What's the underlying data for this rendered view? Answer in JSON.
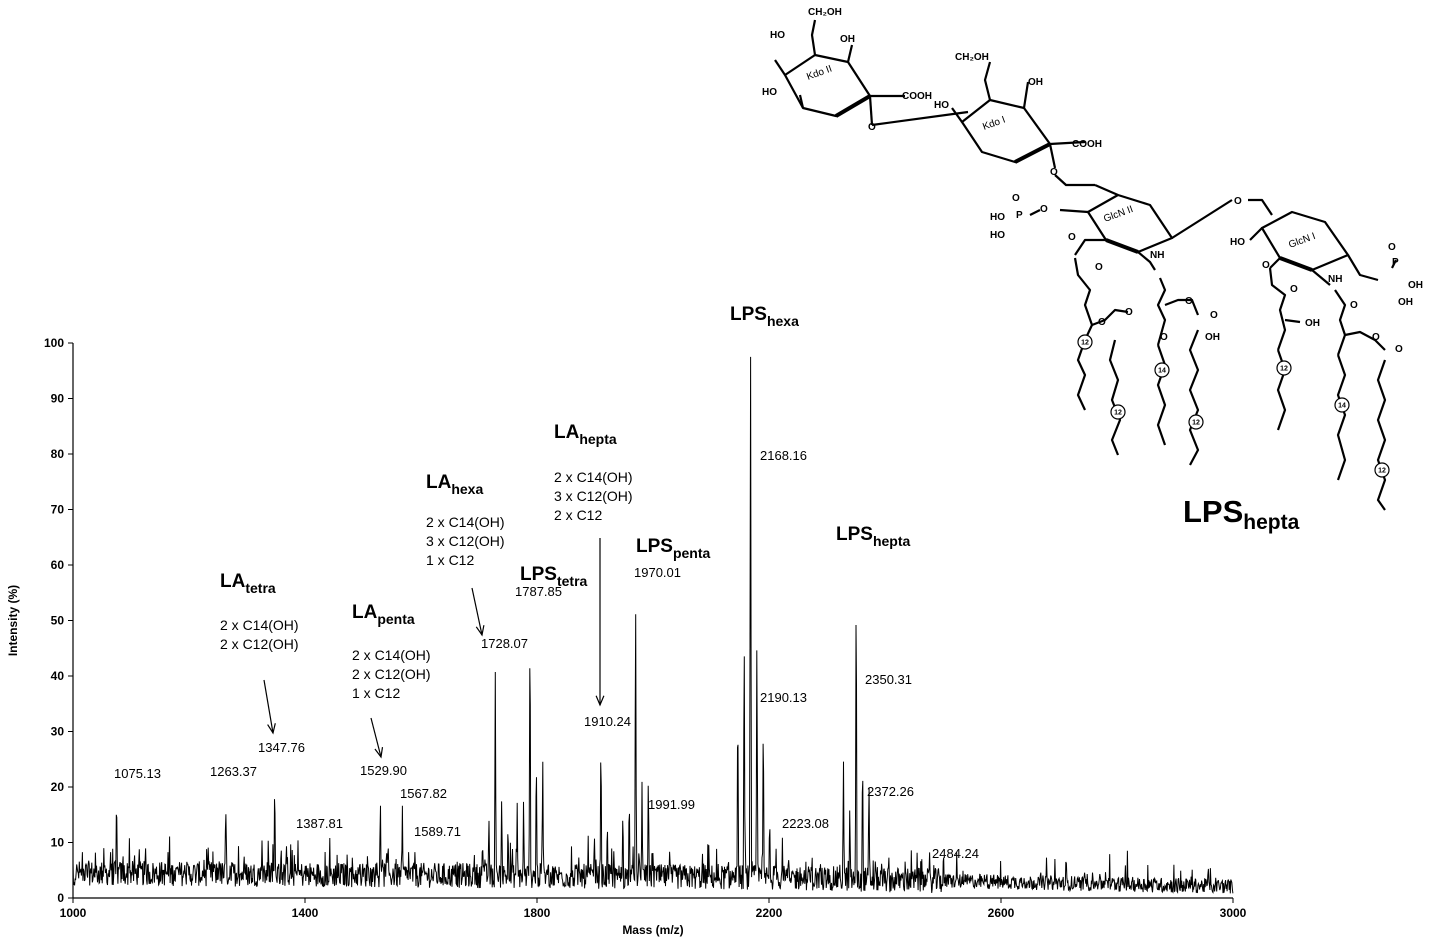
{
  "chart_data": {
    "type": "line",
    "title": "",
    "xlabel": "Mass (m/z)",
    "ylabel": "Intensity (%)",
    "xlim": [
      1000,
      3000
    ],
    "ylim": [
      0,
      100
    ],
    "x_ticks": [
      "1000",
      "1400",
      "1800",
      "2200",
      "2600",
      "3000"
    ],
    "y_ticks": [
      "0",
      "10",
      "20",
      "30",
      "40",
      "50",
      "60",
      "70",
      "80",
      "90",
      "100"
    ],
    "grid": false,
    "legend": "none",
    "line_color": "#000000",
    "peaks": [
      {
        "mz": 1075.13,
        "intensity": 20.5,
        "label": "1075.13"
      },
      {
        "mz": 1263.37,
        "intensity": 19.0,
        "label": "1263.37"
      },
      {
        "mz": 1347.76,
        "intensity": 23.0,
        "label": "1347.76"
      },
      {
        "mz": 1387.81,
        "intensity": 11.0,
        "label": "1387.81"
      },
      {
        "mz": 1529.9,
        "intensity": 19.0,
        "label": "1529.90"
      },
      {
        "mz": 1567.82,
        "intensity": 17.5,
        "label": "1567.82"
      },
      {
        "mz": 1589.71,
        "intensity": 9.5,
        "label": "1589.71"
      },
      {
        "mz": 1728.07,
        "intensity": 41.5,
        "label": "1728.07"
      },
      {
        "mz": 1787.85,
        "intensity": 53.0,
        "label": "1787.85"
      },
      {
        "mz": 1910.24,
        "intensity": 31.0,
        "label": "1910.24"
      },
      {
        "mz": 1970.01,
        "intensity": 58.0,
        "label": "1970.01"
      },
      {
        "mz": 1991.99,
        "intensity": 16.0,
        "label": "1991.99"
      },
      {
        "mz": 2168.16,
        "intensity": 100.0,
        "label": "2168.16"
      },
      {
        "mz": 2190.13,
        "intensity": 35.0,
        "label": "2190.13"
      },
      {
        "mz": 2223.08,
        "intensity": 11.0,
        "label": "2223.08"
      },
      {
        "mz": 2350.31,
        "intensity": 61.0,
        "label": "2350.31"
      },
      {
        "mz": 2372.26,
        "intensity": 18.5,
        "label": "2372.26"
      },
      {
        "mz": 2484.24,
        "intensity": 6.5,
        "label": "2484.24"
      }
    ],
    "annotations": [
      {
        "name": "la-tetra",
        "base": "LA",
        "sub": "tetra",
        "composition": [
          "2 x C14(OH)",
          "2 x C12(OH)"
        ],
        "target_mz": 1347.76
      },
      {
        "name": "la-penta",
        "base": "LA",
        "sub": "penta",
        "composition": [
          "2 x C14(OH)",
          "2 x C12(OH)",
          "1 x C12"
        ],
        "target_mz": 1529.9
      },
      {
        "name": "la-hexa",
        "base": "LA",
        "sub": "hexa",
        "composition": [
          "2 x C14(OH)",
          "3 x C12(OH)",
          "1 x C12"
        ],
        "target_mz": 1728.07
      },
      {
        "name": "la-hepta",
        "base": "LA",
        "sub": "hepta",
        "composition": [
          "2 x C14(OH)",
          "3 x C12(OH)",
          "2 x C12"
        ],
        "target_mz": 1910.24
      },
      {
        "name": "lps-tetra",
        "base": "LPS",
        "sub": "tetra",
        "composition": [],
        "target_mz": 1787.85
      },
      {
        "name": "lps-penta",
        "base": "LPS",
        "sub": "penta",
        "composition": [],
        "target_mz": 1970.01
      },
      {
        "name": "lps-hexa",
        "base": "LPS",
        "sub": "hexa",
        "composition": [],
        "target_mz": 2168.16
      },
      {
        "name": "lps-hepta",
        "base": "LPS",
        "sub": "hepta",
        "composition": [],
        "target_mz": 2350.31
      }
    ]
  },
  "structure": {
    "compound_base": "LPS",
    "compound_sub": "hepta",
    "ring_labels": [
      "Kdo II",
      "Kdo I",
      "GlcN II",
      "GlcN I"
    ],
    "groups": {
      "ch2oh": "CH₂OH",
      "ho": "HO",
      "oh": "OH",
      "cooh": "COOH",
      "o": "O",
      "p": "P",
      "nh": "NH"
    },
    "chain_numbers": [
      "12",
      "12",
      "14",
      "12",
      "12",
      "14",
      "12"
    ]
  }
}
